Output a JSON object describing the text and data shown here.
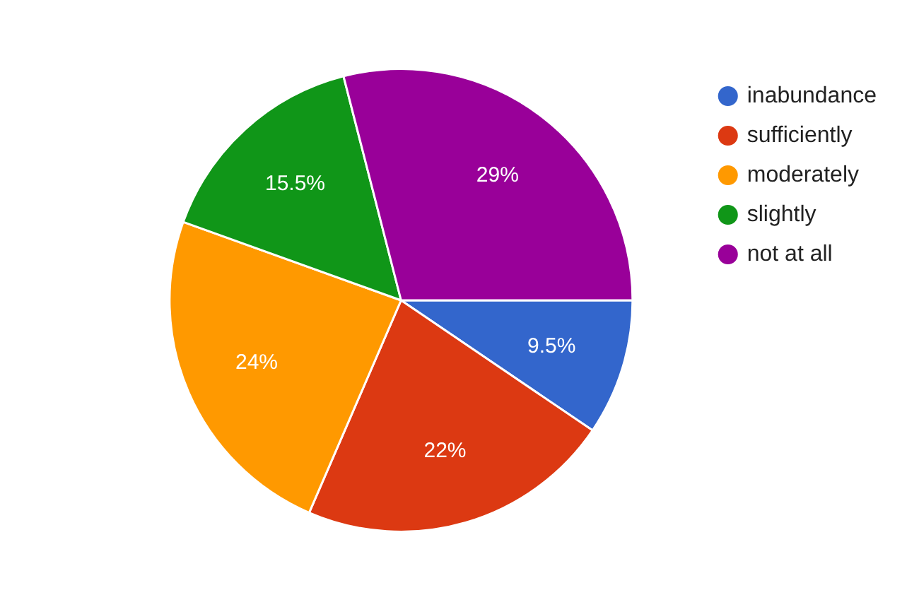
{
  "chart_data": {
    "type": "pie",
    "categories": [
      "inabundance",
      "sufficiently",
      "moderately",
      "slightly",
      "not at all"
    ],
    "values": [
      9.5,
      22,
      24,
      15.5,
      29
    ],
    "colors": [
      "#3366cc",
      "#dc3912",
      "#ff9900",
      "#109618",
      "#990099"
    ],
    "value_labels": [
      "9.5%",
      "22%",
      "24%",
      "15.5%",
      "29%"
    ],
    "legend": "top right"
  }
}
